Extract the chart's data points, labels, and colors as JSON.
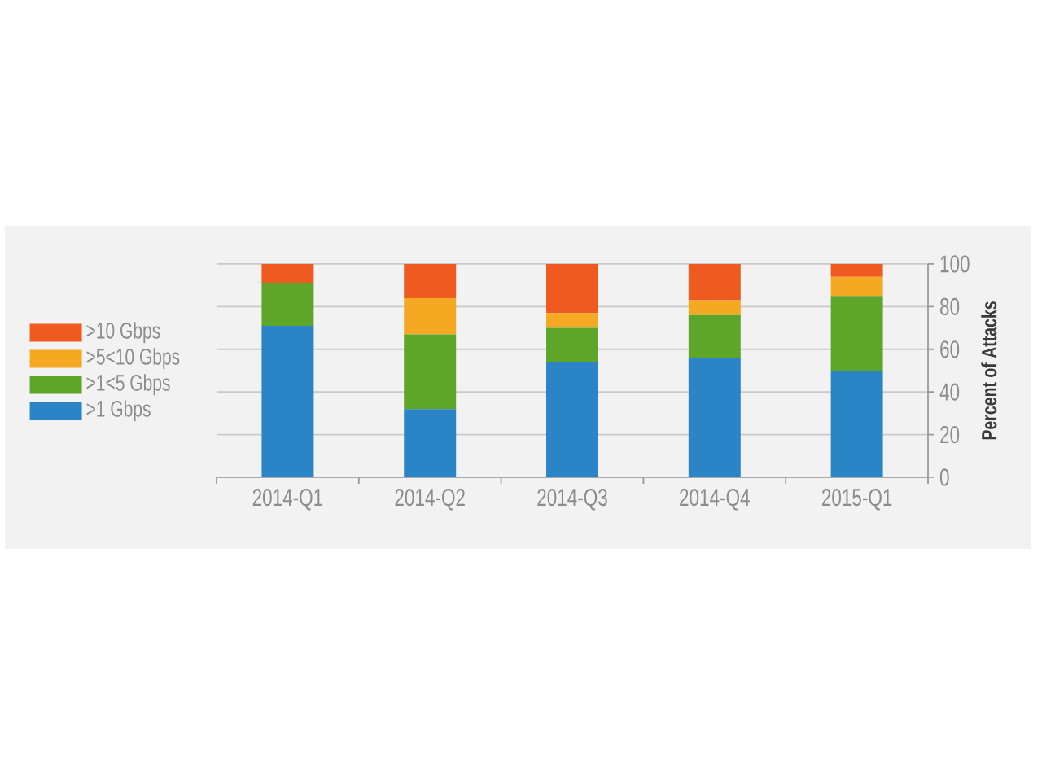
{
  "chart_data": {
    "type": "bar",
    "stacked": true,
    "categories": [
      "2014-Q1",
      "2014-Q2",
      "2014-Q3",
      "2014-Q4",
      "2015-Q1"
    ],
    "series": [
      {
        "name": ">1 Gbps",
        "color": "#2b84c6",
        "values": [
          71,
          32,
          54,
          56,
          50
        ]
      },
      {
        "name": ">1<5 Gbps",
        "color": "#5da62a",
        "values": [
          20,
          35,
          16,
          20,
          35
        ]
      },
      {
        "name": ">5<10 Gbps",
        "color": "#f5a821",
        "values": [
          0,
          17,
          7,
          7,
          9
        ]
      },
      {
        "name": ">10 Gbps",
        "color": "#ee5a1f",
        "values": [
          9,
          16,
          23,
          17,
          6
        ]
      }
    ],
    "ylabel": "Percent of Attacks",
    "ylim": [
      0,
      100
    ],
    "yticks": [
      0,
      20,
      40,
      60,
      80,
      100
    ],
    "grid": "y",
    "legend": "left"
  }
}
